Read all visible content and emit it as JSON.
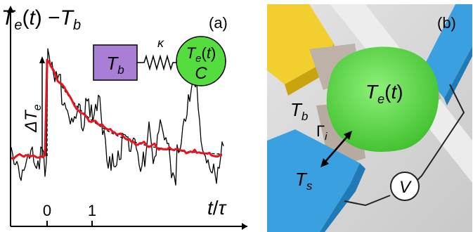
{
  "panel_a": {
    "label": "(a)",
    "ylabel": "T_e(t) − T_b",
    "xlabel": "t/τ",
    "x_ticks": [
      "0",
      "1"
    ],
    "delta_label": "ΔT_e",
    "inset": {
      "bath": "T_b",
      "coupling": "κ",
      "electron": "T_e(t)",
      "capacity": "C"
    }
  },
  "panel_b": {
    "label": "(b)",
    "island": "T_e(t)",
    "bath": "T_b",
    "rate": "Γ_i",
    "superconductor": "T_s",
    "meter": "V"
  },
  "colors": {
    "noisy_trace": "#000000",
    "averaged_trace": "#e8141d",
    "fit": "#000000",
    "bath_box": "#a97fd6",
    "electron_circle": "#55dd40",
    "island": "#63d84a",
    "superconducting_leads": "#3aa0e0",
    "normal_lead": "#f2cf2f",
    "panel_b_background": "#d5d5d5"
  }
}
